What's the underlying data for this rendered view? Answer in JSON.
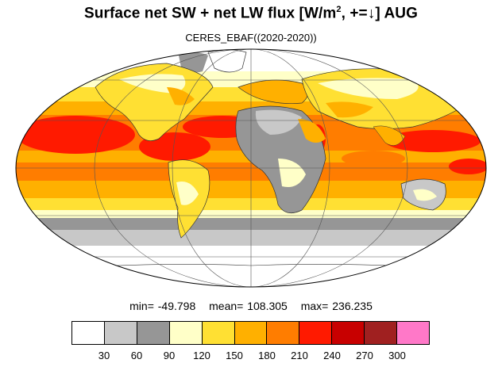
{
  "header": {
    "title_pre": "Surface net SW + net LW flux [W/m",
    "title_sup": "2",
    "title_post": ", +=↓]  AUG",
    "subtitle": "CERES_EBAF((2020-2020))"
  },
  "stats": {
    "min": "min= -49.798",
    "mean": "mean= 108.305",
    "max": "max= 236.235"
  },
  "colorbar": {
    "colors": [
      "#ffffff",
      "#c8c8c8",
      "#969696",
      "#ffffc8",
      "#ffe033",
      "#ffb000",
      "#ff7d00",
      "#ff1a00",
      "#c80000",
      "#a02020",
      "#ff78c8"
    ],
    "ticks": [
      "30",
      "60",
      "90",
      "120",
      "150",
      "180",
      "210",
      "240",
      "270",
      "300"
    ]
  }
}
